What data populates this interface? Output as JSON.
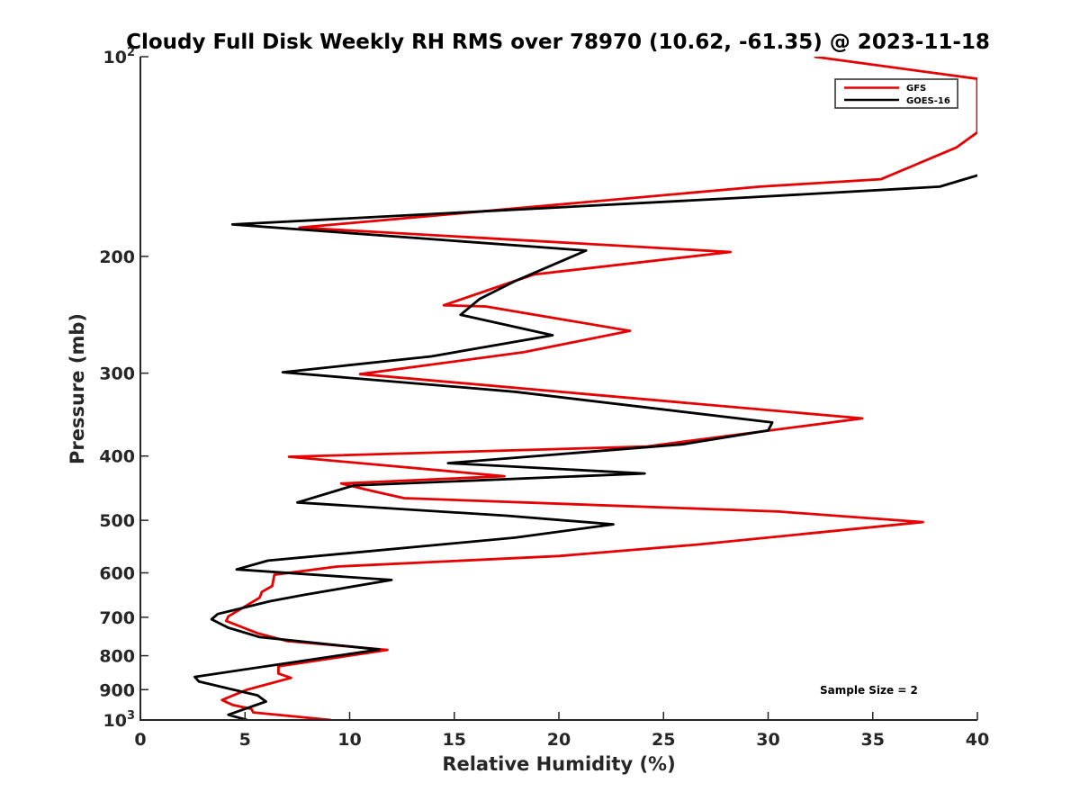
{
  "chart_data": {
    "type": "line",
    "title": "Cloudy Full Disk Weekly RH RMS over 78970 (10.62, -61.35) @ 2023-11-18",
    "xlabel": "Relative Humidity (%)",
    "ylabel": "Pressure (mb)",
    "xlim": [
      0,
      40
    ],
    "ylim": [
      100,
      1000
    ],
    "y_scale": "log",
    "y_reversed": true,
    "x_ticks": [
      0,
      5,
      10,
      15,
      20,
      25,
      30,
      35,
      40
    ],
    "y_ticks": [
      {
        "value": 100,
        "base": "10",
        "exp": "2"
      },
      {
        "value": 200,
        "label": "200"
      },
      {
        "value": 300,
        "label": "300"
      },
      {
        "value": 400,
        "label": "400"
      },
      {
        "value": 500,
        "label": "500"
      },
      {
        "value": 600,
        "label": "600"
      },
      {
        "value": 700,
        "label": "700"
      },
      {
        "value": 800,
        "label": "800"
      },
      {
        "value": 900,
        "label": "900"
      },
      {
        "value": 1000,
        "base": "10",
        "exp": "3"
      }
    ],
    "legend_position": "top-right",
    "grid": false,
    "series": [
      {
        "name": "GFS",
        "color": "#e60000",
        "points": [
          [
            32.2,
            100
          ],
          [
            40.0,
            108
          ],
          [
            40.0,
            130
          ],
          [
            39.0,
            137
          ],
          [
            35.4,
            153
          ],
          [
            29.6,
            157
          ],
          [
            7.6,
            181
          ],
          [
            28.2,
            197
          ],
          [
            18.8,
            213
          ],
          [
            14.5,
            237
          ],
          [
            16.5,
            238
          ],
          [
            23.4,
            259
          ],
          [
            18.3,
            279
          ],
          [
            10.5,
            301
          ],
          [
            34.5,
            351
          ],
          [
            24.2,
            387
          ],
          [
            7.1,
            401
          ],
          [
            17.4,
            429
          ],
          [
            9.6,
            440
          ],
          [
            11.0,
            451
          ],
          [
            12.6,
            463
          ],
          [
            30.5,
            485
          ],
          [
            37.4,
            503
          ],
          [
            26.6,
            544
          ],
          [
            20.0,
            566
          ],
          [
            9.4,
            587
          ],
          [
            6.4,
            604
          ],
          [
            6.3,
            628
          ],
          [
            5.8,
            641
          ],
          [
            5.7,
            654
          ],
          [
            4.2,
            698
          ],
          [
            4.1,
            709
          ],
          [
            5.6,
            740
          ],
          [
            7.0,
            760
          ],
          [
            11.8,
            784
          ],
          [
            6.6,
            830
          ],
          [
            6.6,
            851
          ],
          [
            7.2,
            864
          ],
          [
            5.1,
            900
          ],
          [
            3.9,
            933
          ],
          [
            4.4,
            949
          ],
          [
            5.3,
            962
          ],
          [
            5.4,
            974
          ],
          [
            9.1,
            1000
          ]
        ]
      },
      {
        "name": "GOES-16",
        "color": "#000000",
        "points": [
          [
            40.0,
            151
          ],
          [
            38.2,
            157
          ],
          [
            29.0,
            163
          ],
          [
            4.4,
            179
          ],
          [
            21.3,
            196
          ],
          [
            17.9,
            218
          ],
          [
            16.2,
            232
          ],
          [
            15.3,
            245
          ],
          [
            19.7,
            263
          ],
          [
            13.9,
            283
          ],
          [
            6.8,
            299
          ],
          [
            17.9,
            320
          ],
          [
            30.2,
            356
          ],
          [
            30.0,
            366
          ],
          [
            25.9,
            384
          ],
          [
            14.7,
            410
          ],
          [
            24.1,
            425
          ],
          [
            10.2,
            443
          ],
          [
            7.5,
            470
          ],
          [
            17.5,
            492
          ],
          [
            22.6,
            507
          ],
          [
            17.9,
            531
          ],
          [
            6.1,
            575
          ],
          [
            4.6,
            593
          ],
          [
            12.0,
            615
          ],
          [
            7.9,
            647
          ],
          [
            6.2,
            662
          ],
          [
            3.7,
            692
          ],
          [
            3.4,
            705
          ],
          [
            4.2,
            726
          ],
          [
            5.7,
            750
          ],
          [
            11.4,
            783
          ],
          [
            2.6,
            861
          ],
          [
            2.8,
            875
          ],
          [
            5.6,
            918
          ],
          [
            6.0,
            938
          ],
          [
            4.2,
            982
          ],
          [
            5.1,
            1000
          ]
        ]
      }
    ],
    "annotations": [
      {
        "text": "Sample Size = 2"
      }
    ]
  }
}
